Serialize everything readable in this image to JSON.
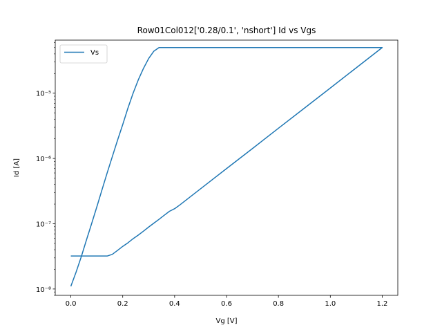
{
  "chart_data": {
    "type": "line",
    "title": "Row01Col012['0.28/0.1', 'nshort'] Id vs Vgs",
    "xlabel": "Vg [V]",
    "ylabel": "Id [A]",
    "xlim": [
      -0.06,
      1.26
    ],
    "ylim": [
      8e-09,
      6.5e-05
    ],
    "yscale": "log",
    "x_ticks": [
      0.0,
      0.2,
      0.4,
      0.6,
      0.8,
      1.0,
      1.2
    ],
    "x_tick_labels": [
      "0.0",
      "0.2",
      "0.4",
      "0.6",
      "0.8",
      "1.0",
      "1.2"
    ],
    "y_ticks": [
      1e-08,
      1e-07,
      1e-06,
      1e-05
    ],
    "y_tick_labels": [
      "10⁻⁸",
      "10⁻⁷",
      "10⁻⁶",
      "10⁻⁵"
    ],
    "grid": false,
    "legend_position": "top-left",
    "series": [
      {
        "name": "Vs",
        "color": "#1f77b4",
        "x": [
          0.0,
          0.02,
          0.04,
          0.06,
          0.08,
          0.1,
          0.12,
          0.14,
          0.16,
          0.18,
          0.2,
          0.22,
          0.24,
          0.26,
          0.28,
          0.3,
          0.32,
          0.34,
          0.36,
          0.38,
          0.4,
          0.5,
          0.6,
          0.7,
          0.8,
          0.9,
          1.0,
          1.1,
          1.2,
          1.2,
          1.1,
          1.0,
          0.9,
          0.8,
          0.7,
          0.6,
          0.5,
          0.42,
          0.4,
          0.38,
          0.36,
          0.34,
          0.32,
          0.3,
          0.28,
          0.26,
          0.24,
          0.22,
          0.2,
          0.18,
          0.16,
          0.14,
          0.12,
          0.1,
          0.08,
          0.06,
          0.04,
          0.02,
          0.0
        ],
        "y": [
          1.1e-08,
          1.8e-08,
          3.1e-08,
          5.6e-08,
          1e-07,
          1.8e-07,
          3.3e-07,
          6e-07,
          1.07e-06,
          1.9e-06,
          3.3e-06,
          5.9e-06,
          1e-05,
          1.6e-05,
          2.4e-05,
          3.4e-05,
          4.4e-05,
          5e-05,
          5e-05,
          5e-05,
          5e-05,
          5e-05,
          5e-05,
          5e-05,
          5e-05,
          5e-05,
          5e-05,
          5e-05,
          5e-05,
          5e-05,
          2.45e-05,
          1.2e-05,
          5.9e-06,
          2.9e-06,
          1.42e-06,
          7e-07,
          3.43e-07,
          1.94e-07,
          1.7e-07,
          1.55e-07,
          1.35e-07,
          1.17e-07,
          1.02e-07,
          8.9e-08,
          7.7e-08,
          6.7e-08,
          5.9e-08,
          5.1e-08,
          4.5e-08,
          3.9e-08,
          3.4e-08,
          3.2e-08,
          3.2e-08,
          3.2e-08,
          3.2e-08,
          3.2e-08,
          3.2e-08,
          3.2e-08,
          3.2e-08
        ]
      }
    ]
  }
}
